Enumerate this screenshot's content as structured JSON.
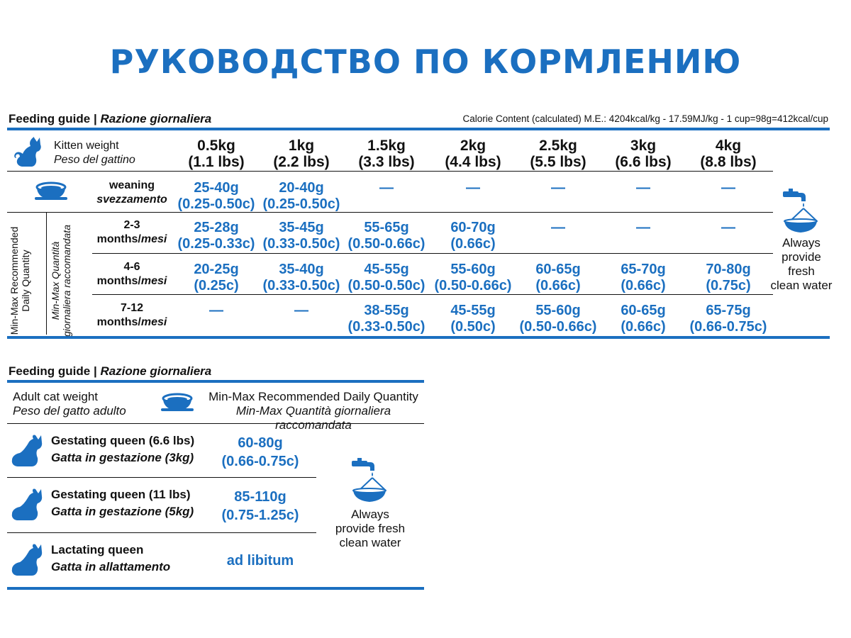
{
  "title": "РУКОВОДСТВО ПО КОРМЛЕНИЮ",
  "kitten_table": {
    "header_en": "Feeding guide",
    "header_sep": " | ",
    "header_it": "Razione giornaliera",
    "calorie": "Calorie Content (calculated) M.E.: 4204kcal/kg - 17.59MJ/kg - 1 cup=98g=412kcal/cup",
    "weight_label_en": "Kitten weight",
    "weight_label_it": "Peso del gattino",
    "side_label_en_1": "Min-Max Recommended",
    "side_label_en_2": "Daily Quantity",
    "side_label_it_1": "Min-Max Quantità",
    "side_label_it_2": "giornaliera raccomandata",
    "weights": [
      {
        "kg": "0.5kg",
        "lbs": "(1.1 lbs)"
      },
      {
        "kg": "1kg",
        "lbs": "(2.2 lbs)"
      },
      {
        "kg": "1.5kg",
        "lbs": "(3.3 lbs)"
      },
      {
        "kg": "2kg",
        "lbs": "(4.4 lbs)"
      },
      {
        "kg": "2.5kg",
        "lbs": "(5.5 lbs)"
      },
      {
        "kg": "3kg",
        "lbs": "(6.6 lbs)"
      },
      {
        "kg": "4kg",
        "lbs": "(8.8 lbs)"
      }
    ],
    "rows": [
      {
        "label1": "weaning",
        "label2": "svezzamento",
        "cells": [
          [
            "25-40g",
            "(0.25-0.50c)"
          ],
          [
            "20-40g",
            "(0.25-0.50c)"
          ],
          [
            "—",
            ""
          ],
          [
            "—",
            ""
          ],
          [
            "—",
            ""
          ],
          [
            "—",
            ""
          ],
          [
            "—",
            ""
          ]
        ]
      },
      {
        "label1": "2-3",
        "label2a": "months/",
        "label2b": "mesi",
        "cells": [
          [
            "25-28g",
            "(0.25-0.33c)"
          ],
          [
            "35-45g",
            "(0.33-0.50c)"
          ],
          [
            "55-65g",
            "(0.50-0.66c)"
          ],
          [
            "60-70g",
            "(0.66c)"
          ],
          [
            "—",
            ""
          ],
          [
            "—",
            ""
          ],
          [
            "—",
            ""
          ]
        ]
      },
      {
        "label1": "4-6",
        "label2a": "months/",
        "label2b": "mesi",
        "cells": [
          [
            "20-25g",
            "(0.25c)"
          ],
          [
            "35-40g",
            "(0.33-0.50c)"
          ],
          [
            "45-55g",
            "(0.50-0.50c)"
          ],
          [
            "55-60g",
            "(0.50-0.66c)"
          ],
          [
            "60-65g",
            "(0.66c)"
          ],
          [
            "65-70g",
            "(0.66c)"
          ],
          [
            "70-80g",
            "(0.75c)"
          ]
        ]
      },
      {
        "label1": "7-12",
        "label2a": "months/",
        "label2b": "mesi",
        "cells": [
          [
            "—",
            ""
          ],
          [
            "—",
            ""
          ],
          [
            "38-55g",
            "(0.33-0.50c)"
          ],
          [
            "45-55g",
            "(0.50c)"
          ],
          [
            "55-60g",
            "(0.50-0.66c)"
          ],
          [
            "60-65g",
            "(0.66c)"
          ],
          [
            "65-75g",
            "(0.66-0.75c)"
          ]
        ]
      }
    ],
    "water_1": "Always",
    "water_2": "provide fresh",
    "water_3": "clean water"
  },
  "adult_table": {
    "header_en": "Feeding guide",
    "header_sep": " | ",
    "header_it": "Razione giornaliera",
    "weight_label_en": "Adult cat weight",
    "weight_label_it": "Peso del gatto adulto",
    "qty_label_en": "Min-Max Recommended Daily Quantity",
    "qty_label_it": "Min-Max Quantità giornaliera raccomandata",
    "rows": [
      {
        "name_en": "Gestating queen (6.6 lbs)",
        "name_it": "Gatta in gestazione (3kg)",
        "v1": "60-80g",
        "v2": "(0.66-0.75c)"
      },
      {
        "name_en": "Gestating queen (11 lbs)",
        "name_it": "Gatta in gestazione (5kg)",
        "v1": "85-110g",
        "v2": "(0.75-1.25c)"
      },
      {
        "name_en": "Lactating queen",
        "name_it": "Gatta in allattamento",
        "v1": "ad libitum",
        "v2": ""
      }
    ],
    "water_1": "Always",
    "water_2": "provide fresh",
    "water_3": "clean water"
  },
  "colors": {
    "accent": "#1b6fc0",
    "text": "#111111"
  },
  "icons": [
    "cat-icon",
    "food-bowl-icon",
    "water-tap-icon"
  ]
}
